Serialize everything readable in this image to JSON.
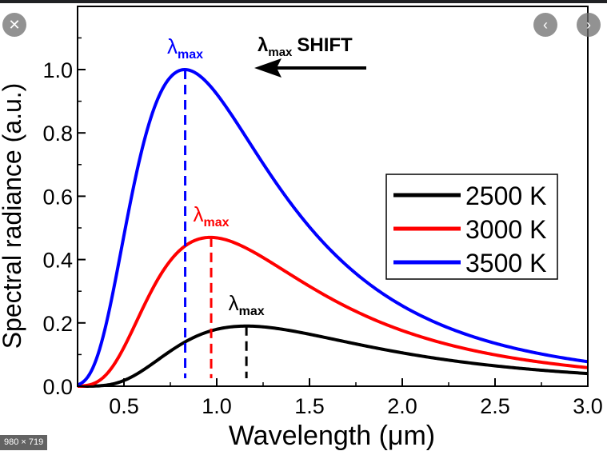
{
  "overlay": {
    "close_icon": "close-icon",
    "prev_icon": "chevron-left-icon",
    "next_icon": "chevron-right-icon",
    "size_badge": "980 × 719"
  },
  "chart_data": {
    "type": "line",
    "xlabel": "Wavelength (μm)",
    "ylabel": "Spectral radiance (a.u.)",
    "xlim": [
      0.25,
      3.0
    ],
    "ylim": [
      0.0,
      1.15
    ],
    "xticks": [
      0.5,
      1.0,
      1.5,
      2.0,
      2.5,
      3.0
    ],
    "yticks": [
      0.0,
      0.2,
      0.4,
      0.6,
      0.8,
      1.0
    ],
    "grid": false,
    "legend_position": "right",
    "shift_annotation": {
      "symbol": "λ",
      "subscript": "max",
      "text": "SHIFT",
      "direction": "left"
    },
    "series": [
      {
        "name": "2500 K",
        "temperature": 2500,
        "color": "#000000",
        "peak_x": 1.16,
        "peak_y": 0.19,
        "peak_label": "λ",
        "peak_sub": "max"
      },
      {
        "name": "3000 K",
        "temperature": 3000,
        "color": "#ff0000",
        "peak_x": 0.97,
        "peak_y": 0.47,
        "peak_label": "λ",
        "peak_sub": "max"
      },
      {
        "name": "3500 K",
        "temperature": 3500,
        "color": "#0000ff",
        "peak_x": 0.83,
        "peak_y": 1.0,
        "peak_label": "λ",
        "peak_sub": "max"
      }
    ]
  }
}
